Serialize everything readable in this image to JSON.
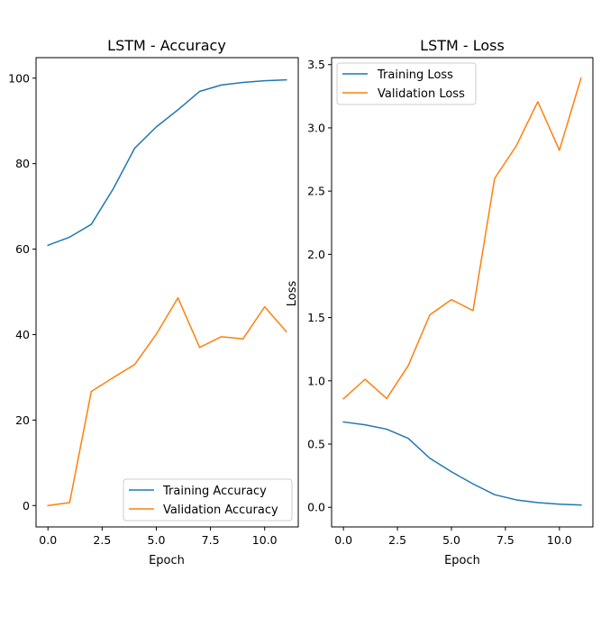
{
  "chart_data": [
    {
      "type": "line",
      "title": "LSTM - Accuracy",
      "xlabel": "Epoch",
      "ylabel": "",
      "x": [
        0,
        1,
        2,
        3,
        4,
        5,
        6,
        7,
        8,
        9,
        10,
        11
      ],
      "xlim": [
        -0.55,
        11.55
      ],
      "ylim": [
        -5,
        104.8
      ],
      "xticks": [
        0.0,
        2.5,
        5.0,
        7.5,
        10.0
      ],
      "xtick_labels": [
        "0.0",
        "2.5",
        "5.0",
        "7.5",
        "10.0"
      ],
      "yticks": [
        0,
        20,
        40,
        60,
        80,
        100
      ],
      "ytick_labels": [
        "0",
        "20",
        "40",
        "60",
        "80",
        "100"
      ],
      "legend_position": "lower-right",
      "grid": false,
      "series": [
        {
          "name": "Training Accuracy",
          "color": "#1f77b4",
          "values": [
            60.9,
            62.8,
            65.8,
            74.0,
            83.6,
            88.6,
            92.6,
            96.9,
            98.4,
            99.0,
            99.4,
            99.6
          ]
        },
        {
          "name": "Validation Accuracy",
          "color": "#ff7f0e",
          "values": [
            0.0,
            0.7,
            26.7,
            29.9,
            33.0,
            40.1,
            48.6,
            37.0,
            39.5,
            39.0,
            46.5,
            40.7
          ]
        }
      ]
    },
    {
      "type": "line",
      "title": "LSTM - Loss",
      "xlabel": "Epoch",
      "ylabel": "Loss",
      "x": [
        0,
        1,
        2,
        3,
        4,
        5,
        6,
        7,
        8,
        9,
        10,
        11
      ],
      "xlim": [
        -0.55,
        11.55
      ],
      "ylim": [
        -0.155,
        3.555
      ],
      "xticks": [
        0.0,
        2.5,
        5.0,
        7.5,
        10.0
      ],
      "xtick_labels": [
        "0.0",
        "2.5",
        "5.0",
        "7.5",
        "10.0"
      ],
      "yticks": [
        0.0,
        0.5,
        1.0,
        1.5,
        2.0,
        2.5,
        3.0,
        3.5
      ],
      "ytick_labels": [
        "0.0",
        "0.5",
        "1.0",
        "1.5",
        "2.0",
        "2.5",
        "3.0",
        "3.5"
      ],
      "legend_position": "upper-left",
      "grid": false,
      "series": [
        {
          "name": "Training Loss",
          "color": "#1f77b4",
          "values": [
            0.675,
            0.652,
            0.618,
            0.545,
            0.388,
            0.281,
            0.185,
            0.1,
            0.059,
            0.037,
            0.025,
            0.018
          ]
        },
        {
          "name": "Validation Loss",
          "color": "#ff7f0e",
          "values": [
            0.858,
            1.012,
            0.86,
            1.12,
            1.522,
            1.642,
            1.555,
            2.6,
            2.857,
            3.207,
            2.823,
            3.393
          ]
        }
      ]
    }
  ]
}
